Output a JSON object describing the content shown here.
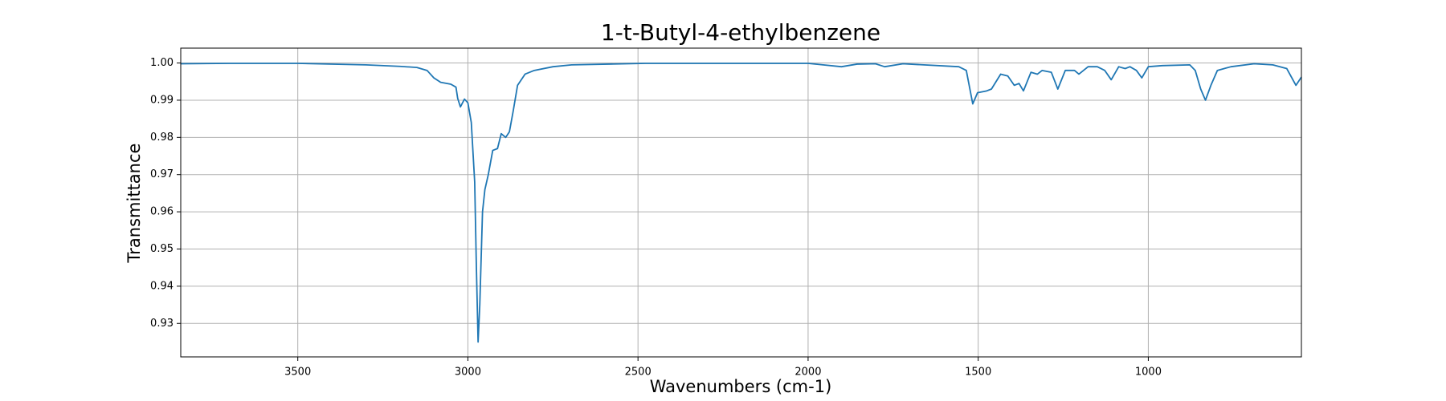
{
  "chart_data": {
    "type": "line",
    "title": "1-t-Butyl-4-ethylbenzene",
    "xlabel": "Wavenumbers (cm-1)",
    "ylabel": "Transmittance",
    "x_inverted": true,
    "grid": true,
    "xlim": [
      3844,
      550
    ],
    "ylim": [
      0.921,
      1.004
    ],
    "xticks": [
      3500,
      3000,
      2500,
      2000,
      1500,
      1000
    ],
    "yticks": [
      0.93,
      0.94,
      0.95,
      0.96,
      0.97,
      0.98,
      0.99,
      {
        "value": 1,
        "label": "1.00"
      }
    ],
    "x": [
      3844,
      3700,
      3500,
      3300,
      3200,
      3150,
      3120,
      3100,
      3080,
      3050,
      3035,
      3030,
      3022,
      3010,
      3000,
      2990,
      2980,
      2975,
      2970,
      2965,
      2957,
      2950,
      2940,
      2927,
      2913,
      2902,
      2889,
      2878,
      2867,
      2854,
      2832,
      2805,
      2750,
      2695,
      2478,
      2000,
      1902,
      1856,
      1802,
      1775,
      1721,
      1557,
      1535,
      1516,
      1502,
      1475,
      1461,
      1434,
      1413,
      1394,
      1380,
      1367,
      1345,
      1326,
      1312,
      1285,
      1266,
      1244,
      1217,
      1204,
      1177,
      1150,
      1128,
      1109,
      1087,
      1068,
      1054,
      1035,
      1019,
      1000,
      959,
      878,
      862,
      846,
      832,
      816,
      797,
      757,
      689,
      634,
      593,
      566,
      550
    ],
    "series": [
      {
        "name": "Transmittance",
        "color": "#1f77b4",
        "values": [
          0.9998,
          0.9999,
          0.9999,
          0.9995,
          0.9991,
          0.9988,
          0.998,
          0.996,
          0.9948,
          0.9943,
          0.9935,
          0.9905,
          0.9882,
          0.9903,
          0.9893,
          0.984,
          0.968,
          0.945,
          0.925,
          0.935,
          0.96,
          0.966,
          0.97,
          0.9765,
          0.977,
          0.981,
          0.98,
          0.9815,
          0.987,
          0.994,
          0.997,
          0.998,
          0.999,
          0.9995,
          0.9999,
          0.9999,
          0.999,
          0.9997,
          0.9998,
          0.999,
          0.9998,
          0.999,
          0.998,
          0.989,
          0.992,
          0.9925,
          0.993,
          0.997,
          0.9965,
          0.994,
          0.9945,
          0.9925,
          0.9975,
          0.997,
          0.998,
          0.9975,
          0.993,
          0.998,
          0.998,
          0.997,
          0.999,
          0.999,
          0.998,
          0.9955,
          0.999,
          0.9985,
          0.999,
          0.998,
          0.996,
          0.999,
          0.9993,
          0.9995,
          0.998,
          0.993,
          0.99,
          0.994,
          0.998,
          0.999,
          0.9998,
          0.9995,
          0.9985,
          0.994,
          0.9962
        ]
      }
    ]
  }
}
